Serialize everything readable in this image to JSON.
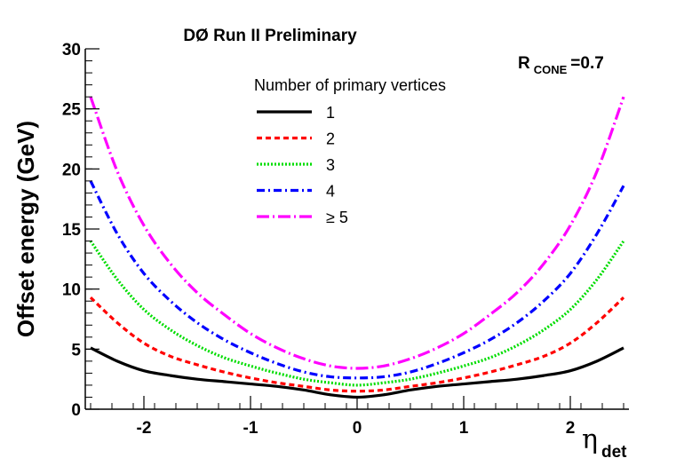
{
  "chart_data": {
    "type": "line",
    "title": "DØ Run II Preliminary",
    "annotation": {
      "main": "R",
      "sub": "CONE",
      "suffix": "=0.7"
    },
    "xlabel": {
      "symbol": "η",
      "sub": "det"
    },
    "ylabel": "Offset energy (GeV)",
    "xlim": [
      -2.55,
      2.55
    ],
    "ylim": [
      0,
      30
    ],
    "x_ticks": [
      -2,
      -1,
      0,
      1,
      2
    ],
    "x_tick_labels": [
      "-2",
      "-1",
      "0",
      "1",
      "2"
    ],
    "y_ticks": [
      0,
      5,
      10,
      15,
      20,
      25,
      30
    ],
    "y_tick_labels": [
      "0",
      "5",
      "10",
      "15",
      "20",
      "25",
      "30"
    ],
    "grid": false,
    "legend": {
      "title": "Number of primary vertices",
      "placement": "top-center"
    },
    "x": [
      -2.5,
      -2.25,
      -2.0,
      -1.75,
      -1.5,
      -1.25,
      -1.0,
      -0.75,
      -0.5,
      -0.25,
      0.0,
      0.25,
      0.5,
      0.75,
      1.0,
      1.25,
      1.5,
      1.75,
      2.0,
      2.25,
      2.5
    ],
    "series": [
      {
        "name": "1",
        "color": "#000000",
        "dash": "solid",
        "values": [
          5.1,
          4.0,
          3.2,
          2.8,
          2.5,
          2.3,
          2.1,
          1.9,
          1.6,
          1.2,
          1.0,
          1.2,
          1.6,
          1.9,
          2.1,
          2.3,
          2.5,
          2.8,
          3.2,
          4.0,
          5.1
        ]
      },
      {
        "name": "2",
        "color": "#ff0000",
        "dash": "dashed",
        "values": [
          9.3,
          7.2,
          5.5,
          4.4,
          3.7,
          3.1,
          2.6,
          2.2,
          1.9,
          1.6,
          1.5,
          1.6,
          1.9,
          2.2,
          2.6,
          3.1,
          3.7,
          4.4,
          5.5,
          7.2,
          9.3
        ]
      },
      {
        "name": "3",
        "color": "#00dd00",
        "dash": "dotted",
        "values": [
          14.0,
          10.8,
          8.3,
          6.6,
          5.3,
          4.3,
          3.6,
          3.0,
          2.5,
          2.2,
          2.0,
          2.2,
          2.5,
          3.0,
          3.6,
          4.3,
          5.3,
          6.6,
          8.3,
          10.8,
          14.0
        ]
      },
      {
        "name": "4",
        "color": "#0000ff",
        "dash": "dashdot",
        "values": [
          19.0,
          14.6,
          11.3,
          9.0,
          7.2,
          5.8,
          4.7,
          3.8,
          3.1,
          2.7,
          2.6,
          2.7,
          3.1,
          3.8,
          4.7,
          5.8,
          7.2,
          9.0,
          11.3,
          14.6,
          18.6
        ]
      },
      {
        "name": "≥ 5",
        "color": "#ff00ff",
        "dash": "longdashdot",
        "values": [
          26.0,
          19.8,
          15.3,
          12.1,
          9.7,
          7.9,
          6.3,
          5.1,
          4.2,
          3.6,
          3.4,
          3.6,
          4.2,
          5.1,
          6.3,
          7.9,
          9.7,
          12.1,
          15.3,
          19.8,
          26.0
        ]
      }
    ]
  }
}
